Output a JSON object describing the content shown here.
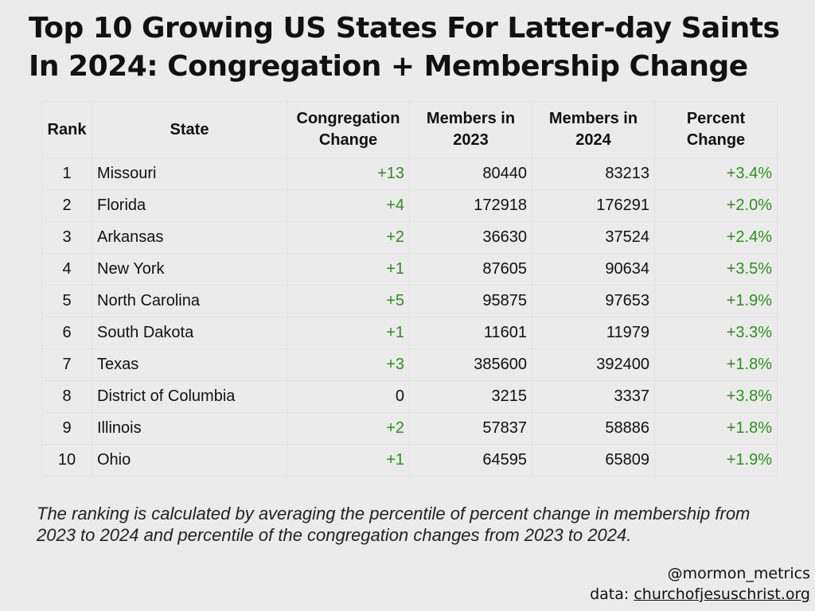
{
  "title": "Top 10 Growing US States For Latter-day Saints In 2024: Congregation + Membership Change",
  "table": {
    "headers": [
      "Rank",
      "State",
      "Congregation Change",
      "Members in 2023",
      "Members in 2024",
      "Percent Change"
    ],
    "rows": [
      [
        "1",
        "Missouri",
        "+13",
        "80440",
        "83213",
        "+3.4%"
      ],
      [
        "2",
        "Florida",
        "+4",
        "172918",
        "176291",
        "+2.0%"
      ],
      [
        "3",
        "Arkansas",
        "+2",
        "36630",
        "37524",
        "+2.4%"
      ],
      [
        "4",
        "New York",
        "+1",
        "87605",
        "90634",
        "+3.5%"
      ],
      [
        "5",
        "North Carolina",
        "+5",
        "95875",
        "97653",
        "+1.9%"
      ],
      [
        "6",
        "South Dakota",
        "+1",
        "11601",
        "11979",
        "+3.3%"
      ],
      [
        "7",
        "Texas",
        "+3",
        "385600",
        "392400",
        "+1.8%"
      ],
      [
        "8",
        "District of Columbia",
        "0",
        "3215",
        "3337",
        "+3.8%"
      ],
      [
        "9",
        "Illinois",
        "+2",
        "57837",
        "58886",
        "+1.8%"
      ],
      [
        "10",
        "Ohio",
        "+1",
        "64595",
        "65809",
        "+1.9%"
      ]
    ]
  },
  "note": "The ranking is calculated by averaging the percentile of percent change in membership from 2023 to 2024 and percentile of the congregation changes from 2023 to 2024.",
  "footer": {
    "handle": "@mormon_metrics",
    "source_label": "data:",
    "source_link": "churchofjesuschrist.org"
  },
  "colors": {
    "positive": "#2f8f1f",
    "background": "#ebebeb"
  }
}
